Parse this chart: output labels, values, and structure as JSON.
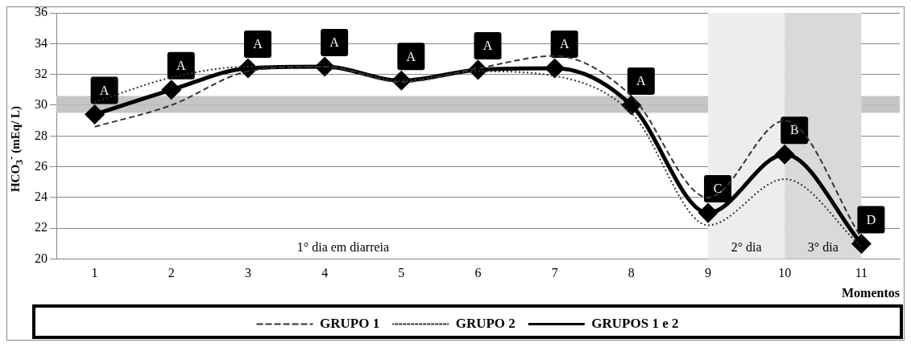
{
  "chart_data": {
    "type": "line",
    "xlabel": "Momentos",
    "ylabel": "HCO$_{3}$$^{-}$ (mEq/ L)",
    "categories": [
      "1",
      "2",
      "3",
      "4",
      "5",
      "6",
      "7",
      "8",
      "9",
      "10",
      "11"
    ],
    "series": [
      {
        "name": "GRUPO 1",
        "color": "#333333",
        "line_style": "dashed",
        "marker": "none",
        "values": [
          28.6,
          30.0,
          32.2,
          32.5,
          31.5,
          32.4,
          33.2,
          30.6,
          24.0,
          29.0,
          21.4
        ]
      },
      {
        "name": "GRUPO 2",
        "color": "#333333",
        "line_style": "dotted",
        "marker": "none",
        "values": [
          30.2,
          31.8,
          32.5,
          32.5,
          31.6,
          32.2,
          31.9,
          29.5,
          22.2,
          25.2,
          20.8
        ]
      },
      {
        "name": "GRUPOS 1 e 2",
        "color": "#000000",
        "line_style": "solid",
        "marker": "diamond",
        "values": [
          29.4,
          31.0,
          32.4,
          32.5,
          31.6,
          32.3,
          32.4,
          30.0,
          23.0,
          26.8,
          21.0
        ]
      }
    ],
    "ylim": [
      20,
      36
    ],
    "yticks": [
      20,
      22,
      24,
      26,
      28,
      30,
      32,
      34,
      36
    ],
    "grid": "y",
    "legend": "bottom",
    "bands": [
      {
        "axis": "y",
        "from": 29.5,
        "to": 30.6,
        "color": "#bfbfbf"
      },
      {
        "axis": "x",
        "from": "9",
        "to": "10",
        "label": "2° dia",
        "color": "#ededed"
      },
      {
        "axis": "x",
        "from": "10",
        "to": "11",
        "label": "3° dia",
        "color": "#d9d9d9"
      }
    ],
    "annotations": [
      {
        "text": "A",
        "x": "1",
        "y": 29.4
      },
      {
        "text": "A",
        "x": "2",
        "y": 31.0
      },
      {
        "text": "A",
        "x": "3",
        "y": 32.4
      },
      {
        "text": "A",
        "x": "4",
        "y": 32.5
      },
      {
        "text": "A",
        "x": "5",
        "y": 31.6
      },
      {
        "text": "A",
        "x": "6",
        "y": 32.3
      },
      {
        "text": "A",
        "x": "7",
        "y": 32.4
      },
      {
        "text": "A",
        "x": "8",
        "y": 30.0
      },
      {
        "text": "C",
        "x": "9",
        "y": 23.0
      },
      {
        "text": "B",
        "x": "10",
        "y": 26.8
      },
      {
        "text": "D",
        "x": "11",
        "y": 21.0
      },
      "1° dia em diarreia"
    ]
  }
}
